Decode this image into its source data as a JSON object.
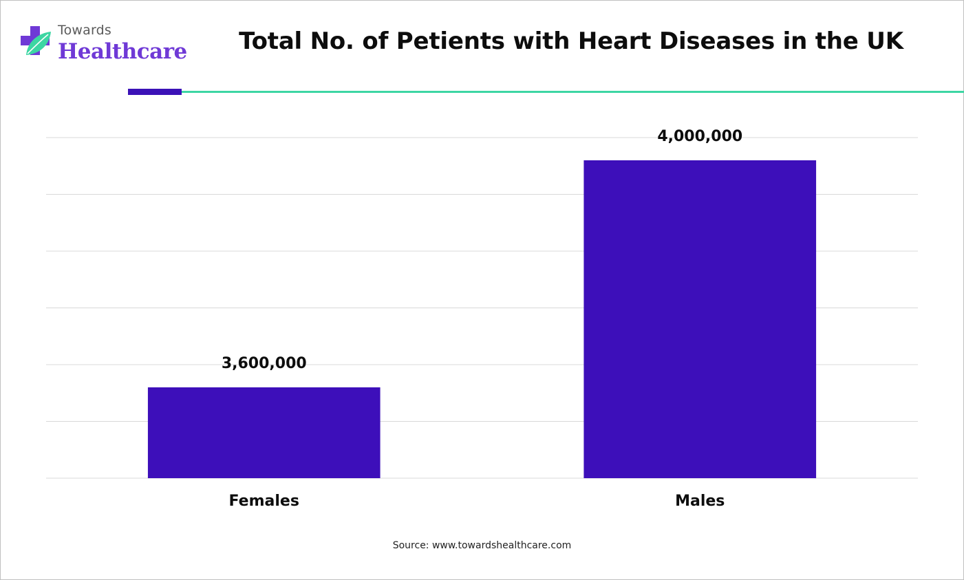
{
  "logo": {
    "line1": "Towards",
    "line2": "Healthcare",
    "colors": {
      "accent": "#6f39d6",
      "leaf": "#3dd6a3"
    },
    "icon": "medical-cross-leaf-icon"
  },
  "header": {
    "title": "Total No. of Petients with Heart Diseases in the UK",
    "accent_colors": {
      "dark": "#3b12b7",
      "line": "#3dd6a3"
    }
  },
  "chart_data": {
    "type": "bar",
    "title": "Total No. of Petients with Heart Diseases in the UK",
    "categories": [
      "Females",
      "Males"
    ],
    "values": [
      3600000,
      4000000
    ],
    "value_labels": [
      "3,600,000",
      "4,000,000"
    ],
    "xlabel": "",
    "ylabel": "",
    "ylim": [
      3440000,
      4040000
    ],
    "y_ticks_labeled": false,
    "grid": true,
    "legend": "none",
    "bar_color": "#3d0fba"
  },
  "footer": {
    "source": "Source: www.towardshealthcare.com"
  }
}
